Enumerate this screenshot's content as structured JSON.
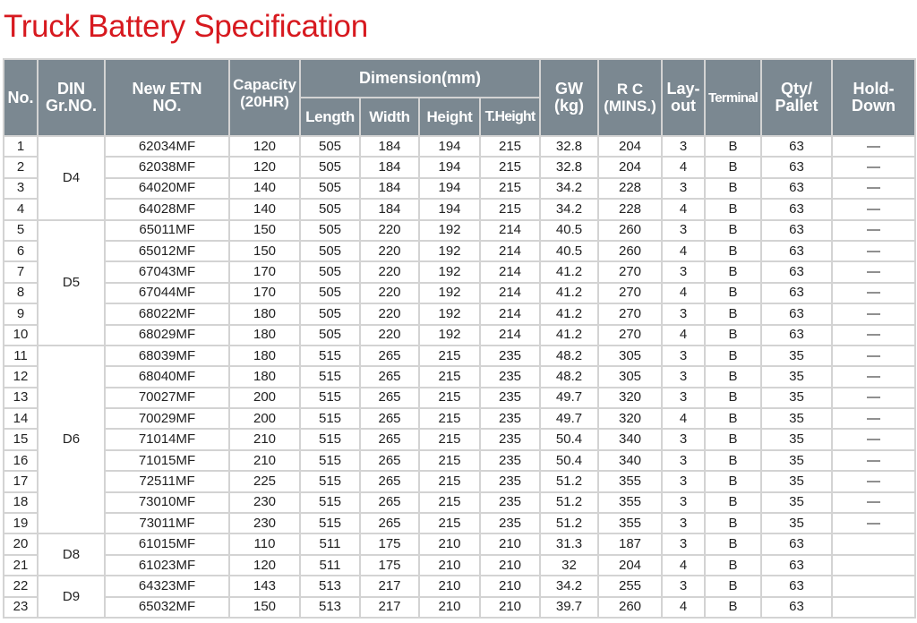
{
  "title": "Truck Battery Specification",
  "headers": {
    "no": "No.",
    "din": [
      "DIN",
      "Gr.NO."
    ],
    "etn": [
      "New ETN",
      "NO."
    ],
    "capacity": [
      "Capacity",
      "(20HR)"
    ],
    "dimension": "Dimension(mm)",
    "length": "Length",
    "width": "Width",
    "height": "Height",
    "theight": "T.Height",
    "gw": [
      "GW",
      "(kg)"
    ],
    "rc": [
      "R C",
      "(MINS.)"
    ],
    "layout": [
      "Lay-",
      "out"
    ],
    "terminal": "Terminal",
    "qty": [
      "Qty/",
      "Pallet"
    ],
    "holddown": [
      "Hold-",
      "Down"
    ]
  },
  "groups": [
    {
      "din": "D4",
      "rows": [
        [
          "1",
          "62034MF",
          "120",
          "505",
          "184",
          "194",
          "215",
          "32.8",
          "204",
          "3",
          "B",
          "63",
          "—"
        ],
        [
          "2",
          "62038MF",
          "120",
          "505",
          "184",
          "194",
          "215",
          "32.8",
          "204",
          "4",
          "B",
          "63",
          "—"
        ],
        [
          "3",
          "64020MF",
          "140",
          "505",
          "184",
          "194",
          "215",
          "34.2",
          "228",
          "3",
          "B",
          "63",
          "—"
        ],
        [
          "4",
          "64028MF",
          "140",
          "505",
          "184",
          "194",
          "215",
          "34.2",
          "228",
          "4",
          "B",
          "63",
          "—"
        ]
      ]
    },
    {
      "din": "D5",
      "rows": [
        [
          "5",
          "65011MF",
          "150",
          "505",
          "220",
          "192",
          "214",
          "40.5",
          "260",
          "3",
          "B",
          "63",
          "—"
        ],
        [
          "6",
          "65012MF",
          "150",
          "505",
          "220",
          "192",
          "214",
          "40.5",
          "260",
          "4",
          "B",
          "63",
          "—"
        ],
        [
          "7",
          "67043MF",
          "170",
          "505",
          "220",
          "192",
          "214",
          "41.2",
          "270",
          "3",
          "B",
          "63",
          "—"
        ],
        [
          "8",
          "67044MF",
          "170",
          "505",
          "220",
          "192",
          "214",
          "41.2",
          "270",
          "4",
          "B",
          "63",
          "—"
        ],
        [
          "9",
          "68022MF",
          "180",
          "505",
          "220",
          "192",
          "214",
          "41.2",
          "270",
          "3",
          "B",
          "63",
          "—"
        ],
        [
          "10",
          "68029MF",
          "180",
          "505",
          "220",
          "192",
          "214",
          "41.2",
          "270",
          "4",
          "B",
          "63",
          "—"
        ]
      ]
    },
    {
      "din": "D6",
      "rows": [
        [
          "11",
          "68039MF",
          "180",
          "515",
          "265",
          "215",
          "235",
          "48.2",
          "305",
          "3",
          "B",
          "35",
          "—"
        ],
        [
          "12",
          "68040MF",
          "180",
          "515",
          "265",
          "215",
          "235",
          "48.2",
          "305",
          "3",
          "B",
          "35",
          "—"
        ],
        [
          "13",
          "70027MF",
          "200",
          "515",
          "265",
          "215",
          "235",
          "49.7",
          "320",
          "3",
          "B",
          "35",
          "—"
        ],
        [
          "14",
          "70029MF",
          "200",
          "515",
          "265",
          "215",
          "235",
          "49.7",
          "320",
          "4",
          "B",
          "35",
          "—"
        ],
        [
          "15",
          "71014MF",
          "210",
          "515",
          "265",
          "215",
          "235",
          "50.4",
          "340",
          "3",
          "B",
          "35",
          "—"
        ],
        [
          "16",
          "71015MF",
          "210",
          "515",
          "265",
          "215",
          "235",
          "50.4",
          "340",
          "3",
          "B",
          "35",
          "—"
        ],
        [
          "17",
          "72511MF",
          "225",
          "515",
          "265",
          "215",
          "235",
          "51.2",
          "355",
          "3",
          "B",
          "35",
          "—"
        ],
        [
          "18",
          "73010MF",
          "230",
          "515",
          "265",
          "215",
          "235",
          "51.2",
          "355",
          "3",
          "B",
          "35",
          "—"
        ],
        [
          "19",
          "73011MF",
          "230",
          "515",
          "265",
          "215",
          "235",
          "51.2",
          "355",
          "3",
          "B",
          "35",
          "—"
        ]
      ]
    },
    {
      "din": "D8",
      "rows": [
        [
          "20",
          "61015MF",
          "110",
          "511",
          "175",
          "210",
          "210",
          "31.3",
          "187",
          "3",
          "B",
          "63",
          ""
        ],
        [
          "21",
          "61023MF",
          "120",
          "511",
          "175",
          "210",
          "210",
          "32",
          "204",
          "4",
          "B",
          "63",
          ""
        ]
      ]
    },
    {
      "din": "D9",
      "rows": [
        [
          "22",
          "64323MF",
          "143",
          "513",
          "217",
          "210",
          "210",
          "34.2",
          "255",
          "3",
          "B",
          "63",
          ""
        ],
        [
          "23",
          "65032MF",
          "150",
          "513",
          "217",
          "210",
          "210",
          "39.7",
          "260",
          "4",
          "B",
          "63",
          ""
        ]
      ]
    }
  ]
}
